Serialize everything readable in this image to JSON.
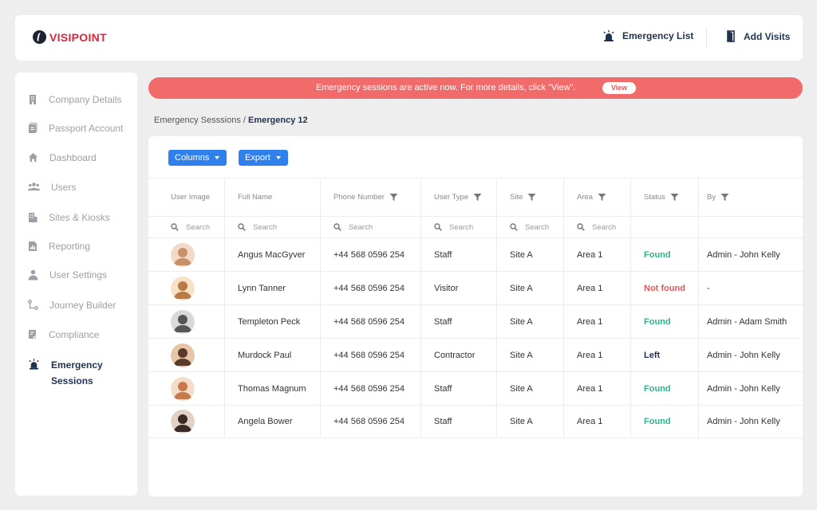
{
  "brand": {
    "name": "VISIPOINT"
  },
  "header": {
    "emergency_list": "Emergency List",
    "add_visits": "Add Visits"
  },
  "sidebar": {
    "items": [
      {
        "label": "Company Details",
        "icon": "building-icon"
      },
      {
        "label": "Passport Account",
        "icon": "passport-icon"
      },
      {
        "label": "Dashboard",
        "icon": "home-icon"
      },
      {
        "label": "Users",
        "icon": "users-icon"
      },
      {
        "label": "Sites & Kiosks",
        "icon": "sites-icon"
      },
      {
        "label": "Reporting",
        "icon": "report-icon"
      },
      {
        "label": "User Settings",
        "icon": "user-settings-icon"
      },
      {
        "label": "Journey Builder",
        "icon": "journey-icon"
      },
      {
        "label": "Compliance",
        "icon": "compliance-icon"
      },
      {
        "label_line1": "Emergency",
        "label_line2": "Sessions",
        "icon": "siren-icon",
        "active": true
      }
    ]
  },
  "banner": {
    "text": "Emergency sessions are active now. For more details, click \"View\".",
    "button": "View",
    "color": "#f26b6b"
  },
  "breadcrumb": {
    "parent": "Emergency Sesssions",
    "separator": " / ",
    "current": "Emergency 12"
  },
  "toolbar": {
    "columns": "Columns",
    "export": "Export"
  },
  "table": {
    "headers": [
      "User Image",
      "Full Name",
      "Phone Number",
      "User Type",
      "Site",
      "Area",
      "Status",
      "By"
    ],
    "search_placeholder": "Search",
    "rows": [
      {
        "name": "Angus MacGyver",
        "phone": "+44 568 0596 254",
        "type": "Staff",
        "site": "Site A",
        "area": "Area 1",
        "status": "Found",
        "by": "Admin - John Kelly"
      },
      {
        "name": "Lynn Tanner",
        "phone": "+44 568 0596 254",
        "type": "Visitor",
        "site": "Site A",
        "area": "Area 1",
        "status": "Not found",
        "by": "-"
      },
      {
        "name": "Templeton Peck",
        "phone": "+44 568 0596 254",
        "type": "Staff",
        "site": "Site A",
        "area": "Area 1",
        "status": "Found",
        "by": "Admin - Adam Smith"
      },
      {
        "name": "Murdock Paul",
        "phone": "+44 568 0596 254",
        "type": "Contractor",
        "site": "Site A",
        "area": "Area 1",
        "status": "Left",
        "by": "Admin - John Kelly"
      },
      {
        "name": "Thomas Magnum",
        "phone": "+44 568 0596 254",
        "type": "Staff",
        "site": "Site A",
        "area": "Area 1",
        "status": "Found",
        "by": "Admin - John Kelly"
      },
      {
        "name": "Angela Bower",
        "phone": "+44 568 0596 254",
        "type": "Staff",
        "site": "Site A",
        "area": "Area 1",
        "status": "Found",
        "by": "Admin - John Kelly"
      }
    ]
  },
  "colors": {
    "accent": "#2f80ed",
    "found": "#2bb58a",
    "not_found": "#e8575a",
    "left": "#1f3350",
    "brand_red": "#d8263b"
  }
}
